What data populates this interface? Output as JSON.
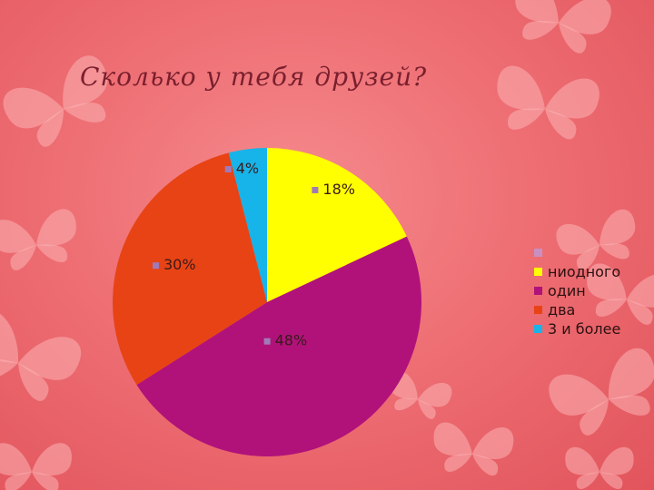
{
  "slide": {
    "title": "Сколько у тебя друзей?"
  },
  "chart_data": {
    "type": "pie",
    "title": "Сколько у тебя друзей?",
    "categories": [
      "ниодного",
      "один",
      "два",
      "3 и более"
    ],
    "values": [
      18,
      48,
      30,
      4
    ],
    "data_labels": [
      "18%",
      "48%",
      "30%",
      "4%"
    ],
    "colors": [
      "#ffff00",
      "#b0127a",
      "#e84315",
      "#16b4e8"
    ],
    "legend": {
      "position": "right",
      "extra_entry_color": "#c98fc0",
      "entries": [
        "",
        "ниодного",
        "один",
        "два",
        "3 и более"
      ],
      "colors": [
        "#c98fc0",
        "#ffff00",
        "#b0127a",
        "#e84315",
        "#16b4e8"
      ]
    },
    "label_marker_color": "#a07ab8"
  }
}
